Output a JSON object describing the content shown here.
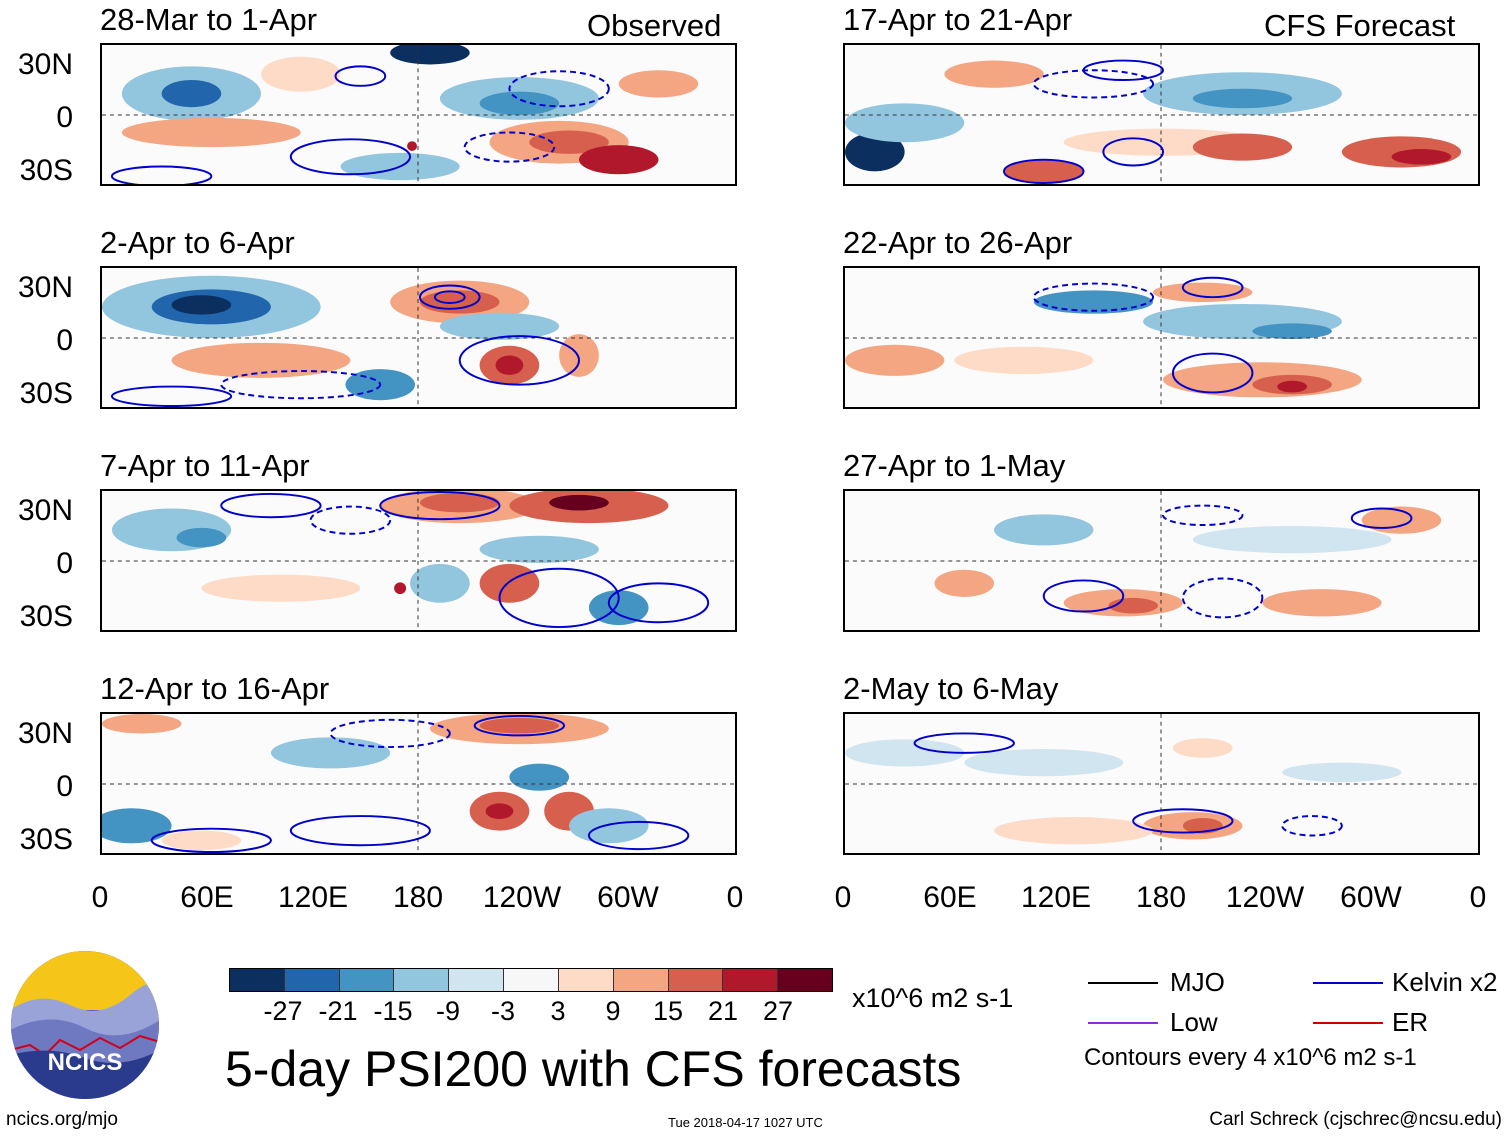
{
  "left_column": {
    "header": "Observed"
  },
  "right_column": {
    "header": "CFS Forecast"
  },
  "panels": [
    {
      "title": "28-Mar to 1-Apr"
    },
    {
      "title": "2-Apr to 6-Apr"
    },
    {
      "title": "7-Apr to 11-Apr"
    },
    {
      "title": "12-Apr to 16-Apr"
    },
    {
      "title": "17-Apr to 21-Apr"
    },
    {
      "title": "22-Apr to 26-Apr"
    },
    {
      "title": "27-Apr to 1-May"
    },
    {
      "title": "2-May to 6-May"
    }
  ],
  "lat_labels": [
    "30N",
    "0",
    "30S"
  ],
  "lon_labels": [
    "0",
    "60E",
    "120E",
    "180",
    "120W",
    "60W",
    "0"
  ],
  "colorbar": {
    "colors": [
      "#0b2f5f",
      "#2166ac",
      "#4393c3",
      "#92c5de",
      "#d1e5f0",
      "#f7f7f7",
      "#fddbc7",
      "#f4a582",
      "#d6604d",
      "#b2182b",
      "#67001f"
    ],
    "labels": [
      "-27",
      "-21",
      "-15",
      "-9",
      "-3",
      "3",
      "9",
      "15",
      "21",
      "27"
    ],
    "units": "x10^6 m2 s-1"
  },
  "legend": {
    "items": [
      {
        "label": "MJO",
        "color": "#000000"
      },
      {
        "label": "Kelvin x2",
        "color": "#0000cc"
      },
      {
        "label": "Low",
        "color": "#8a2be2"
      },
      {
        "label": "ER",
        "color": "#cc0000"
      }
    ],
    "contour_note": "Contours every 4 x10^6 m2 s-1"
  },
  "main_title": "5-day PSI200 with CFS forecasts",
  "logo_text": "NCICS",
  "footer": {
    "left": "ncics.org/mjo",
    "timestamp": "Tue 2018-04-17 1027 UTC",
    "right": "Carl Schreck (cjschrec@ncsu.edu)"
  }
}
